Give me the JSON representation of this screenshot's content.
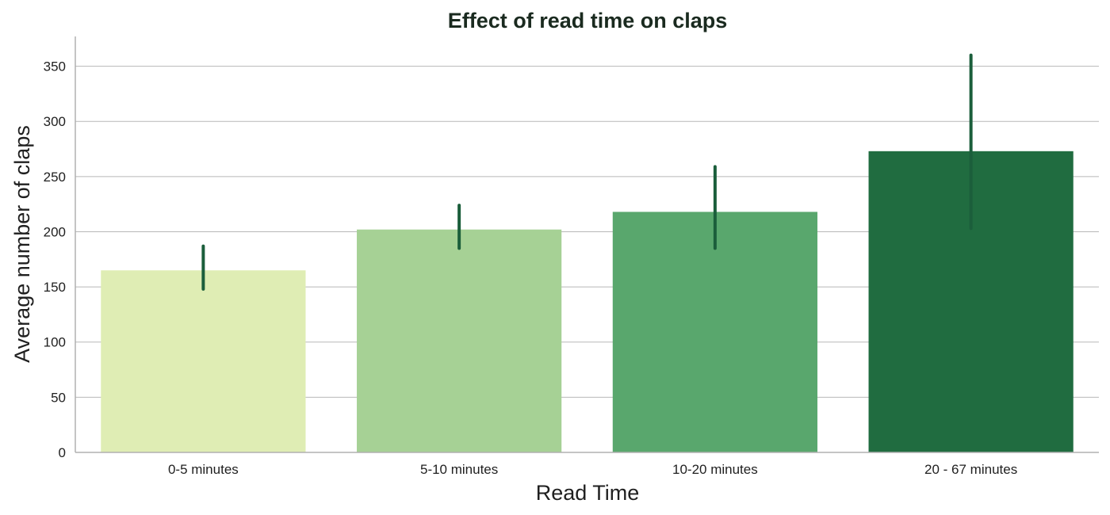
{
  "chart_data": {
    "type": "bar",
    "title": "Effect of read time on claps",
    "xlabel": "Read Time",
    "ylabel": "Average number of claps",
    "categories": [
      "0-5 minutes",
      "5-10 minutes",
      "10-20 minutes",
      "20 - 67 minutes"
    ],
    "values": [
      165,
      202,
      218,
      273
    ],
    "error_bars": [
      {
        "low": 148,
        "high": 187
      },
      {
        "low": 185,
        "high": 224
      },
      {
        "low": 185,
        "high": 259
      },
      {
        "low": 203,
        "high": 360
      }
    ],
    "colors": [
      "#dfedb4",
      "#a6d195",
      "#59a76d",
      "#206c40"
    ],
    "error_color": "#1b5e3b",
    "ylim": [
      0,
      377
    ],
    "yticks": [
      0,
      50,
      100,
      150,
      200,
      250,
      300,
      350
    ],
    "grid": true,
    "grid_color": "#b8b8b8",
    "axis_color": "#b0b0b0",
    "legend": "none"
  }
}
